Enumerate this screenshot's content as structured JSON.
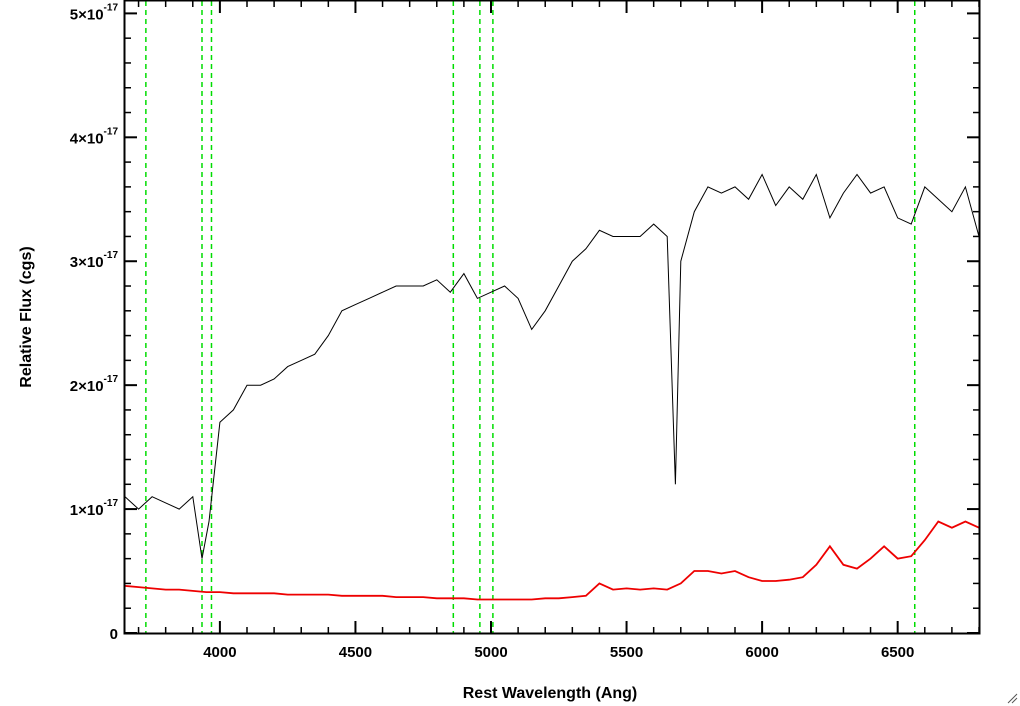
{
  "chart_data": {
    "type": "line",
    "title": "",
    "xlabel": "Rest Wavelength (Ang)",
    "ylabel": "Relative Flux (cgs)",
    "xlim": [
      3650,
      6800
    ],
    "ylim": [
      0,
      5.1e-17
    ],
    "x_ticks": [
      4000,
      4500,
      5000,
      5500,
      6000,
      6500
    ],
    "y_ticks": [
      {
        "mantissa": "0",
        "exponent": ""
      },
      {
        "mantissa": "1×10",
        "exponent": "-17"
      },
      {
        "mantissa": "2×10",
        "exponent": "-17"
      },
      {
        "mantissa": "3×10",
        "exponent": "-17"
      },
      {
        "mantissa": "4×10",
        "exponent": "-17"
      },
      {
        "mantissa": "5×10",
        "exponent": "-17"
      }
    ],
    "grid": false,
    "vlines": {
      "color": "#00dd00",
      "style": "dashed",
      "x": [
        3727,
        3934,
        3969,
        4861,
        4959,
        5007,
        6563
      ]
    },
    "series": [
      {
        "color": "#000000",
        "x": [
          3650,
          3700,
          3750,
          3800,
          3850,
          3900,
          3934,
          3960,
          4000,
          4050,
          4100,
          4150,
          4200,
          4250,
          4300,
          4350,
          4400,
          4450,
          4500,
          4550,
          4600,
          4650,
          4700,
          4750,
          4800,
          4850,
          4900,
          4950,
          5000,
          5050,
          5100,
          5150,
          5200,
          5250,
          5300,
          5350,
          5400,
          5450,
          5500,
          5550,
          5600,
          5650,
          5680,
          5700,
          5750,
          5800,
          5850,
          5900,
          5950,
          6000,
          6050,
          6100,
          6150,
          6200,
          6250,
          6300,
          6350,
          6400,
          6450,
          6500,
          6550,
          6600,
          6650,
          6700,
          6750,
          6800
        ],
        "y": [
          1.1e-17,
          1e-17,
          1.1e-17,
          1.05e-17,
          1e-17,
          1.1e-17,
          6e-18,
          9e-18,
          1.7e-17,
          1.8e-17,
          2e-17,
          2e-17,
          2.05e-17,
          2.15e-17,
          2.2e-17,
          2.25e-17,
          2.4e-17,
          2.6e-17,
          2.65e-17,
          2.7e-17,
          2.75e-17,
          2.8e-17,
          2.8e-17,
          2.8e-17,
          2.85e-17,
          2.75e-17,
          2.9e-17,
          2.7e-17,
          2.75e-17,
          2.8e-17,
          2.7e-17,
          2.45e-17,
          2.6e-17,
          2.8e-17,
          3e-17,
          3.1e-17,
          3.25e-17,
          3.2e-17,
          3.2e-17,
          3.2e-17,
          3.3e-17,
          3.2e-17,
          1.2e-17,
          3e-17,
          3.4e-17,
          3.6e-17,
          3.55e-17,
          3.6e-17,
          3.5e-17,
          3.7e-17,
          3.45e-17,
          3.6e-17,
          3.5e-17,
          3.7e-17,
          3.35e-17,
          3.55e-17,
          3.7e-17,
          3.55e-17,
          3.6e-17,
          3.35e-17,
          3.3e-17,
          3.6e-17,
          3.5e-17,
          3.4e-17,
          3.6e-17,
          3.2e-17
        ]
      },
      {
        "color": "#ee0000",
        "x": [
          3650,
          3700,
          3750,
          3800,
          3850,
          3900,
          3950,
          4000,
          4050,
          4100,
          4150,
          4200,
          4250,
          4300,
          4350,
          4400,
          4450,
          4500,
          4550,
          4600,
          4650,
          4700,
          4750,
          4800,
          4850,
          4900,
          4950,
          5000,
          5050,
          5100,
          5150,
          5200,
          5250,
          5300,
          5350,
          5400,
          5450,
          5500,
          5550,
          5600,
          5650,
          5700,
          5750,
          5800,
          5850,
          5900,
          5950,
          6000,
          6050,
          6100,
          6150,
          6200,
          6250,
          6300,
          6350,
          6400,
          6450,
          6500,
          6550,
          6600,
          6650,
          6700,
          6750,
          6800
        ],
        "y": [
          3.8e-18,
          3.7e-18,
          3.6e-18,
          3.5e-18,
          3.5e-18,
          3.4e-18,
          3.3e-18,
          3.3e-18,
          3.2e-18,
          3.2e-18,
          3.2e-18,
          3.2e-18,
          3.1e-18,
          3.1e-18,
          3.1e-18,
          3.1e-18,
          3e-18,
          3e-18,
          3e-18,
          3e-18,
          2.9e-18,
          2.9e-18,
          2.9e-18,
          2.8e-18,
          2.8e-18,
          2.8e-18,
          2.7e-18,
          2.7e-18,
          2.7e-18,
          2.7e-18,
          2.7e-18,
          2.8e-18,
          2.8e-18,
          2.9e-18,
          3e-18,
          4e-18,
          3.5e-18,
          3.6e-18,
          3.5e-18,
          3.6e-18,
          3.5e-18,
          4e-18,
          5e-18,
          5e-18,
          4.8e-18,
          5e-18,
          4.5e-18,
          4.2e-18,
          4.2e-18,
          4.3e-18,
          4.5e-18,
          5.5e-18,
          7e-18,
          5.5e-18,
          5.2e-18,
          6e-18,
          7e-18,
          6e-18,
          6.2e-18,
          7.5e-18,
          9e-18,
          8.5e-18,
          9e-18,
          8.5e-18
        ]
      }
    ]
  }
}
